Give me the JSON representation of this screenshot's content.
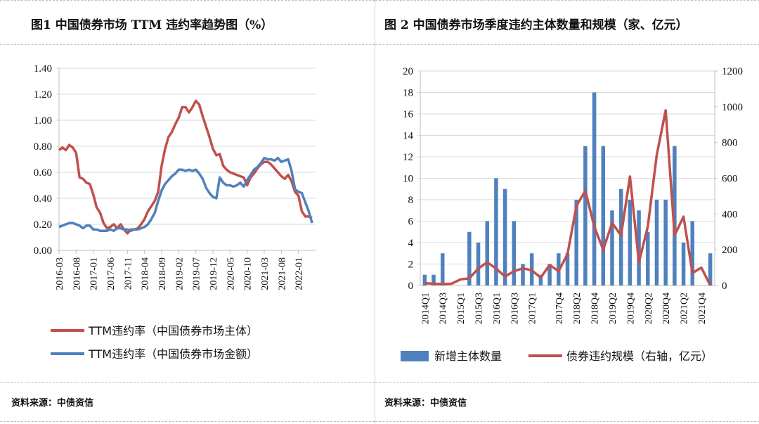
{
  "left": {
    "title": "图1  中国债券市场 TTM 违约率趋势图（%）",
    "source": "资料来源：中债资信"
  },
  "right": {
    "title": "图 2  中国债券市场季度违约主体数量和规模（家、亿元）",
    "source": "资料来源：中债资信"
  },
  "colors": {
    "red": "#c0504d",
    "blue": "#4f81bd"
  },
  "chart_data": [
    {
      "type": "line",
      "title": "图1  中国债券市场 TTM 违约率趋势图（%）",
      "ylim": [
        0,
        1.4
      ],
      "yticks": [
        0.0,
        0.2,
        0.4,
        0.6,
        0.8,
        1.0,
        1.2,
        1.4
      ],
      "ytick_labels": [
        "0.00",
        "0.20",
        "0.40",
        "0.60",
        "0.80",
        "1.00",
        "1.20",
        "1.40"
      ],
      "xlim": [
        "2016-03",
        "2022-06"
      ],
      "xtick_labels": [
        "2016-03",
        "2016-08",
        "2017-01",
        "2017-06",
        "2017-11",
        "2018-04",
        "2018-09",
        "2019-02",
        "2019-07",
        "2019-12",
        "2020-05",
        "2020-10",
        "2021-03",
        "2021-08",
        "2022-01"
      ],
      "legend": "bottom",
      "series": [
        {
          "name": "TTM违约率（中国债券市场主体）",
          "color": "#c0504d",
          "x": [
            "2016-03",
            "2016-04",
            "2016-05",
            "2016-06",
            "2016-07",
            "2016-08",
            "2016-09",
            "2016-10",
            "2016-11",
            "2016-12",
            "2017-01",
            "2017-02",
            "2017-03",
            "2017-04",
            "2017-05",
            "2017-06",
            "2017-07",
            "2017-08",
            "2017-09",
            "2017-10",
            "2017-11",
            "2017-12",
            "2018-01",
            "2018-02",
            "2018-03",
            "2018-04",
            "2018-05",
            "2018-06",
            "2018-07",
            "2018-08",
            "2018-09",
            "2018-10",
            "2018-11",
            "2018-12",
            "2019-01",
            "2019-02",
            "2019-03",
            "2019-04",
            "2019-05",
            "2019-06",
            "2019-07",
            "2019-08",
            "2019-09",
            "2019-10",
            "2019-11",
            "2019-12",
            "2020-01",
            "2020-02",
            "2020-03",
            "2020-04",
            "2020-05",
            "2020-06",
            "2020-07",
            "2020-08",
            "2020-09",
            "2020-10",
            "2020-11",
            "2020-12",
            "2021-01",
            "2021-02",
            "2021-03",
            "2021-04",
            "2021-05",
            "2021-06",
            "2021-07",
            "2021-08",
            "2021-09",
            "2021-10",
            "2021-11",
            "2021-12",
            "2022-01",
            "2022-02",
            "2022-03",
            "2022-04",
            "2022-05"
          ],
          "values": [
            0.77,
            0.79,
            0.77,
            0.81,
            0.79,
            0.75,
            0.56,
            0.55,
            0.52,
            0.51,
            0.43,
            0.33,
            0.29,
            0.21,
            0.17,
            0.18,
            0.2,
            0.17,
            0.2,
            0.16,
            0.13,
            0.16,
            0.16,
            0.17,
            0.2,
            0.24,
            0.3,
            0.34,
            0.38,
            0.45,
            0.65,
            0.78,
            0.87,
            0.91,
            0.97,
            1.02,
            1.1,
            1.1,
            1.06,
            1.1,
            1.15,
            1.12,
            1.03,
            0.95,
            0.87,
            0.78,
            0.73,
            0.74,
            0.65,
            0.62,
            0.6,
            0.59,
            0.58,
            0.57,
            0.56,
            0.5,
            0.56,
            0.59,
            0.63,
            0.66,
            0.68,
            0.68,
            0.66,
            0.63,
            0.6,
            0.57,
            0.55,
            0.58,
            0.53,
            0.45,
            0.42,
            0.3,
            0.26,
            0.26,
            0.25
          ]
        },
        {
          "name": "TTM违约率（中国债券市场金额）",
          "color": "#4f81bd",
          "x": [
            "2016-03",
            "2016-04",
            "2016-05",
            "2016-06",
            "2016-07",
            "2016-08",
            "2016-09",
            "2016-10",
            "2016-11",
            "2016-12",
            "2017-01",
            "2017-02",
            "2017-03",
            "2017-04",
            "2017-05",
            "2017-06",
            "2017-07",
            "2017-08",
            "2017-09",
            "2017-10",
            "2017-11",
            "2017-12",
            "2018-01",
            "2018-02",
            "2018-03",
            "2018-04",
            "2018-05",
            "2018-06",
            "2018-07",
            "2018-08",
            "2018-09",
            "2018-10",
            "2018-11",
            "2018-12",
            "2019-01",
            "2019-02",
            "2019-03",
            "2019-04",
            "2019-05",
            "2019-06",
            "2019-07",
            "2019-08",
            "2019-09",
            "2019-10",
            "2019-11",
            "2019-12",
            "2020-01",
            "2020-02",
            "2020-03",
            "2020-04",
            "2020-05",
            "2020-06",
            "2020-07",
            "2020-08",
            "2020-09",
            "2020-10",
            "2020-11",
            "2020-12",
            "2021-01",
            "2021-02",
            "2021-03",
            "2021-04",
            "2021-05",
            "2021-06",
            "2021-07",
            "2021-08",
            "2021-09",
            "2021-10",
            "2021-11",
            "2021-12",
            "2022-01",
            "2022-02",
            "2022-03",
            "2022-04",
            "2022-05"
          ],
          "values": [
            0.18,
            0.19,
            0.2,
            0.21,
            0.21,
            0.2,
            0.19,
            0.17,
            0.19,
            0.19,
            0.16,
            0.16,
            0.15,
            0.15,
            0.15,
            0.16,
            0.15,
            0.17,
            0.17,
            0.16,
            0.16,
            0.15,
            0.16,
            0.16,
            0.17,
            0.18,
            0.2,
            0.24,
            0.29,
            0.38,
            0.46,
            0.51,
            0.54,
            0.57,
            0.59,
            0.62,
            0.62,
            0.61,
            0.62,
            0.61,
            0.62,
            0.59,
            0.55,
            0.48,
            0.44,
            0.41,
            0.4,
            0.56,
            0.52,
            0.5,
            0.5,
            0.49,
            0.5,
            0.52,
            0.49,
            0.54,
            0.58,
            0.62,
            0.64,
            0.67,
            0.71,
            0.7,
            0.7,
            0.69,
            0.71,
            0.68,
            0.69,
            0.7,
            0.61,
            0.47,
            0.45,
            0.44,
            0.37,
            0.3,
            0.21
          ]
        }
      ]
    },
    {
      "type": "bar",
      "title": "图 2  中国债券市场季度违约主体数量和规模（家、亿元）",
      "categories": [
        "2014Q1",
        "2014Q2",
        "2014Q3",
        "2014Q4",
        "2015Q1",
        "2015Q2",
        "2015Q3",
        "2015Q4",
        "2016Q1",
        "2016Q2",
        "2016Q3",
        "2016Q4",
        "2017Q1",
        "2017Q2",
        "2017Q3",
        "2017Q4",
        "2018Q1",
        "2018Q2",
        "2018Q3",
        "2018Q4",
        "2019Q1",
        "2019Q2",
        "2019Q3",
        "2019Q4",
        "2020Q1",
        "2020Q2",
        "2020Q3",
        "2020Q4",
        "2021Q1",
        "2021Q2",
        "2021Q3",
        "2021Q4",
        "2022Q1"
      ],
      "xtick_labels": [
        "2014Q1",
        "2014Q3",
        "2015Q1",
        "2015Q3",
        "2016Q1",
        "2016Q3",
        "2017Q1",
        "2017Q4",
        "2018Q2",
        "2018Q4",
        "2019Q2",
        "2019Q4",
        "2020Q2",
        "2020Q4",
        "2021Q2",
        "2021Q4"
      ],
      "ylim": [
        0,
        20
      ],
      "yticks": [
        0,
        2,
        4,
        6,
        8,
        10,
        12,
        14,
        16,
        18,
        20
      ],
      "y2lim": [
        0,
        1200
      ],
      "y2ticks": [
        0,
        200,
        400,
        600,
        800,
        1000,
        1200
      ],
      "legend": "bottom",
      "series": [
        {
          "name": "新增主体数量",
          "kind": "bar",
          "axis": "left",
          "color": "#4f81bd",
          "values": [
            1,
            1,
            3,
            0,
            0,
            5,
            4,
            6,
            10,
            9,
            6,
            2,
            3,
            1,
            2,
            3,
            3,
            8,
            13,
            18,
            13,
            7,
            9,
            8,
            7,
            5,
            8,
            8,
            13,
            4,
            6,
            0,
            3
          ]
        },
        {
          "name": "债券违约规模（右轴，亿元）",
          "kind": "line",
          "axis": "right",
          "color": "#c0504d",
          "values": [
            13,
            10,
            8,
            10,
            34,
            40,
            95,
            130,
            95,
            50,
            80,
            96,
            85,
            44,
            115,
            80,
            175,
            445,
            530,
            330,
            200,
            350,
            280,
            610,
            130,
            330,
            730,
            980,
            280,
            385,
            70,
            100,
            0
          ]
        }
      ]
    }
  ]
}
